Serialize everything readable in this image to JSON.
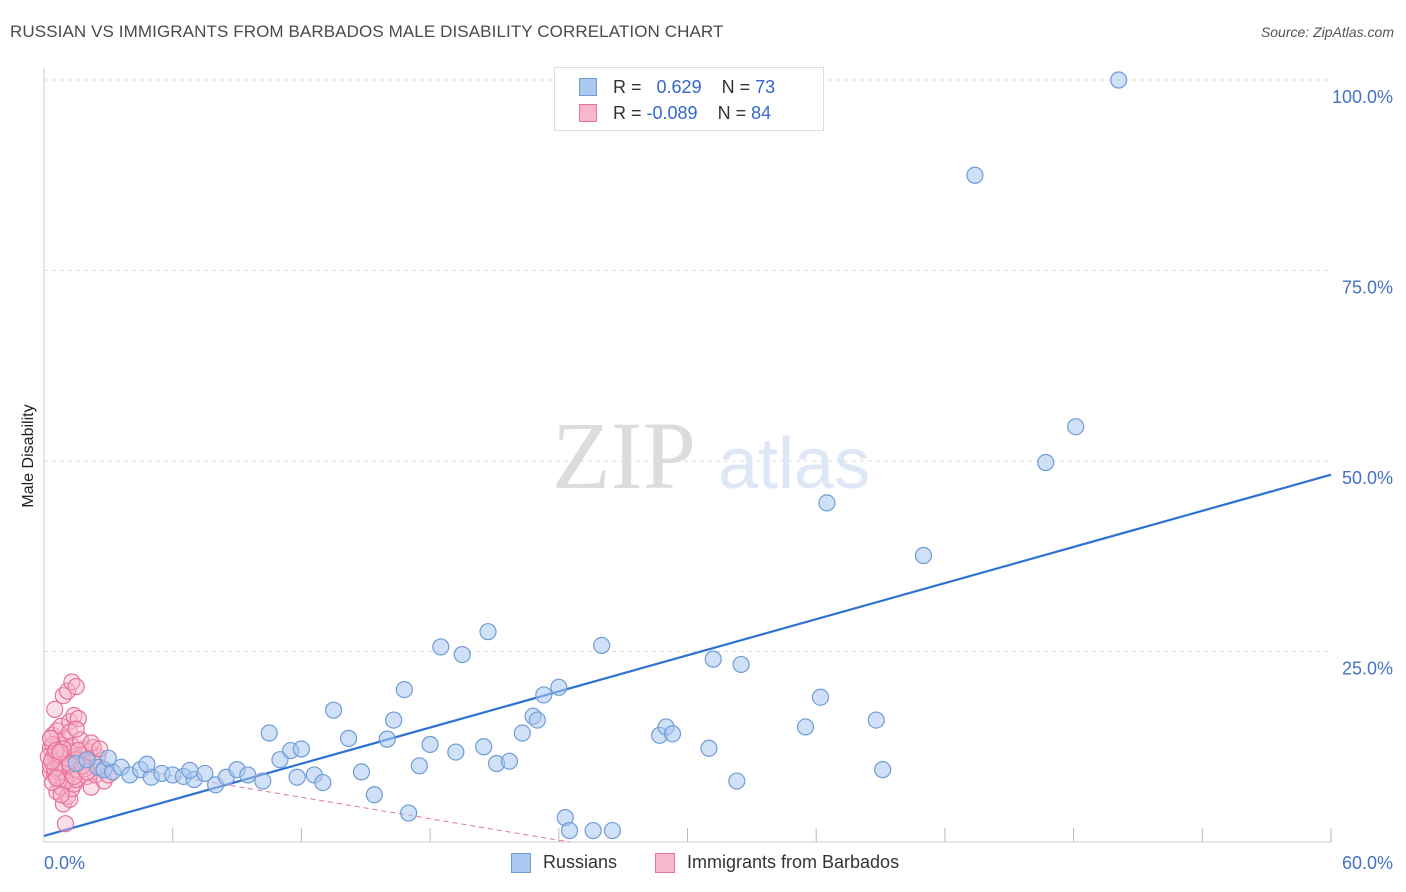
{
  "title": "RUSSIAN VS IMMIGRANTS FROM BARBADOS MALE DISABILITY CORRELATION CHART",
  "source": "Source: ZipAtlas.com",
  "watermark": {
    "zip": "ZIP",
    "atlas": "atlas"
  },
  "legend": {
    "row1": {
      "r_label": "R =",
      "r_value": "0.629",
      "n_label": "N =",
      "n_value": "73"
    },
    "row2": {
      "r_label": "R =",
      "r_value": "-0.089",
      "n_label": "N =",
      "n_value": "84"
    }
  },
  "bottom_legend": {
    "series1": "Russians",
    "series2": "Immigrants from Barbados"
  },
  "colors": {
    "blue_fill": "#aac8f0",
    "blue_stroke": "#6f9bd6",
    "blue_line": "#2d72d2",
    "pink_fill": "#f7b8cb",
    "pink_stroke": "#e8709a",
    "pink_line": "#e8709a",
    "tick_color": "#4472c4",
    "grid": "#dddddd"
  },
  "chart_data": {
    "type": "scatter",
    "title": "RUSSIAN VS IMMIGRANTS FROM BARBADOS MALE DISABILITY CORRELATION CHART",
    "xlabel": "",
    "ylabel": "Male Disability",
    "xlim": [
      0,
      60
    ],
    "ylim": [
      0,
      100
    ],
    "x_tick_labels": [
      "0.0%",
      "60.0%"
    ],
    "y_ticks": [
      25,
      50,
      75,
      100
    ],
    "y_tick_labels": [
      "25.0%",
      "50.0%",
      "75.0%",
      "100.0%"
    ],
    "series": [
      {
        "name": "Russians",
        "r": 0.629,
        "n": 73,
        "trend": {
          "x": [
            0,
            60
          ],
          "y": [
            0.8,
            48.2
          ]
        },
        "points": [
          [
            2.5,
            9.8
          ],
          [
            2.8,
            9.5
          ],
          [
            3.2,
            9.2
          ],
          [
            3.6,
            9.8
          ],
          [
            4.0,
            8.8
          ],
          [
            4.5,
            9.5
          ],
          [
            5.0,
            8.5
          ],
          [
            5.5,
            9.0
          ],
          [
            6.0,
            8.8
          ],
          [
            6.5,
            8.6
          ],
          [
            7.0,
            8.2
          ],
          [
            7.5,
            9.0
          ],
          [
            8.0,
            7.5
          ],
          [
            8.5,
            8.5
          ],
          [
            9.0,
            9.5
          ],
          [
            9.5,
            8.8
          ],
          [
            10.5,
            14.3
          ],
          [
            10.2,
            8.0
          ],
          [
            11.0,
            10.8
          ],
          [
            11.5,
            12.0
          ],
          [
            11.8,
            8.5
          ],
          [
            12.0,
            12.2
          ],
          [
            12.6,
            8.8
          ],
          [
            13.0,
            7.8
          ],
          [
            13.5,
            17.3
          ],
          [
            14.2,
            13.6
          ],
          [
            14.8,
            9.2
          ],
          [
            15.4,
            6.2
          ],
          [
            16.0,
            13.5
          ],
          [
            16.3,
            16.0
          ],
          [
            16.8,
            20.0
          ],
          [
            17.0,
            3.8
          ],
          [
            17.5,
            10.0
          ],
          [
            18.0,
            12.8
          ],
          [
            18.5,
            25.6
          ],
          [
            19.2,
            11.8
          ],
          [
            19.5,
            24.6
          ],
          [
            20.5,
            12.5
          ],
          [
            20.7,
            27.6
          ],
          [
            21.1,
            10.3
          ],
          [
            21.7,
            10.6
          ],
          [
            22.3,
            14.3
          ],
          [
            22.8,
            16.5
          ],
          [
            23.0,
            16.0
          ],
          [
            23.3,
            19.3
          ],
          [
            24.0,
            20.3
          ],
          [
            24.3,
            3.2
          ],
          [
            24.5,
            1.5
          ],
          [
            25.6,
            1.5
          ],
          [
            26.0,
            25.8
          ],
          [
            26.5,
            1.5
          ],
          [
            28.7,
            14.0
          ],
          [
            29.0,
            15.1
          ],
          [
            29.3,
            14.2
          ],
          [
            31.0,
            12.3
          ],
          [
            31.2,
            24.0
          ],
          [
            32.3,
            8.0
          ],
          [
            32.5,
            23.3
          ],
          [
            35.5,
            15.1
          ],
          [
            36.2,
            19.0
          ],
          [
            36.5,
            44.5
          ],
          [
            38.8,
            16.0
          ],
          [
            39.1,
            9.5
          ],
          [
            41.0,
            37.6
          ],
          [
            43.4,
            87.5
          ],
          [
            46.7,
            49.8
          ],
          [
            48.1,
            54.5
          ],
          [
            50.1,
            100.0
          ],
          [
            3.0,
            11.0
          ],
          [
            1.5,
            10.3
          ],
          [
            2.0,
            10.8
          ],
          [
            6.8,
            9.4
          ],
          [
            4.8,
            10.2
          ]
        ]
      },
      {
        "name": "Immigrants from Barbados",
        "r": -0.089,
        "n": 84,
        "trend": {
          "x": [
            0,
            24.5
          ],
          "y": [
            11.5,
            0.0
          ]
        },
        "points": [
          [
            0.3,
            12.4
          ],
          [
            0.4,
            11.0
          ],
          [
            0.5,
            10.2
          ],
          [
            0.6,
            11.8
          ],
          [
            0.7,
            9.6
          ],
          [
            0.8,
            12.8
          ],
          [
            0.9,
            10.6
          ],
          [
            1.0,
            11.4
          ],
          [
            0.3,
            9.2
          ],
          [
            0.5,
            8.8
          ],
          [
            0.7,
            13.2
          ],
          [
            0.9,
            8.4
          ],
          [
            1.1,
            12.0
          ],
          [
            1.2,
            10.0
          ],
          [
            1.3,
            9.0
          ],
          [
            1.4,
            11.2
          ],
          [
            0.4,
            14.0
          ],
          [
            0.6,
            14.6
          ],
          [
            0.8,
            15.2
          ],
          [
            1.0,
            13.6
          ],
          [
            1.2,
            15.8
          ],
          [
            1.4,
            16.6
          ],
          [
            0.5,
            17.4
          ],
          [
            0.9,
            19.2
          ],
          [
            1.1,
            19.8
          ],
          [
            1.3,
            21.0
          ],
          [
            1.5,
            20.4
          ],
          [
            1.2,
            14.4
          ],
          [
            1.6,
            16.2
          ],
          [
            0.6,
            6.6
          ],
          [
            0.8,
            7.2
          ],
          [
            0.9,
            5.0
          ],
          [
            1.1,
            6.0
          ],
          [
            1.2,
            5.6
          ],
          [
            1.3,
            7.0
          ],
          [
            1.4,
            7.6
          ],
          [
            1.5,
            8.2
          ],
          [
            1.6,
            9.4
          ],
          [
            1.7,
            10.4
          ],
          [
            1.8,
            11.6
          ],
          [
            1.9,
            12.2
          ],
          [
            2.0,
            8.6
          ],
          [
            2.2,
            7.2
          ],
          [
            2.4,
            8.8
          ],
          [
            2.3,
            10.6
          ],
          [
            2.5,
            11.2
          ],
          [
            2.6,
            9.8
          ],
          [
            2.8,
            8.0
          ],
          [
            3.0,
            8.8
          ],
          [
            0.3,
            10.0
          ],
          [
            0.4,
            12.8
          ],
          [
            0.5,
            11.6
          ],
          [
            0.6,
            10.8
          ],
          [
            0.7,
            9.2
          ],
          [
            0.8,
            10.4
          ],
          [
            1.0,
            9.8
          ],
          [
            1.1,
            11.0
          ],
          [
            1.3,
            12.6
          ],
          [
            1.5,
            10.8
          ],
          [
            1.7,
            13.4
          ],
          [
            1.9,
            9.6
          ],
          [
            2.1,
            11.8
          ],
          [
            2.3,
            12.4
          ],
          [
            0.2,
            11.2
          ],
          [
            0.3,
            13.6
          ],
          [
            0.5,
            9.6
          ],
          [
            0.7,
            11.4
          ],
          [
            0.9,
            12.2
          ],
          [
            1.0,
            8.0
          ],
          [
            1.2,
            10.2
          ],
          [
            1.4,
            8.6
          ],
          [
            1.6,
            12.0
          ],
          [
            1.8,
            10.0
          ],
          [
            2.0,
            9.2
          ],
          [
            0.4,
            7.8
          ],
          [
            0.6,
            8.4
          ],
          [
            0.8,
            6.2
          ],
          [
            1.0,
            2.4
          ],
          [
            1.5,
            14.8
          ],
          [
            2.2,
            13.0
          ],
          [
            2.6,
            12.2
          ],
          [
            0.35,
            10.6
          ],
          [
            0.55,
            12.0
          ],
          [
            0.75,
            11.8
          ]
        ]
      }
    ]
  }
}
